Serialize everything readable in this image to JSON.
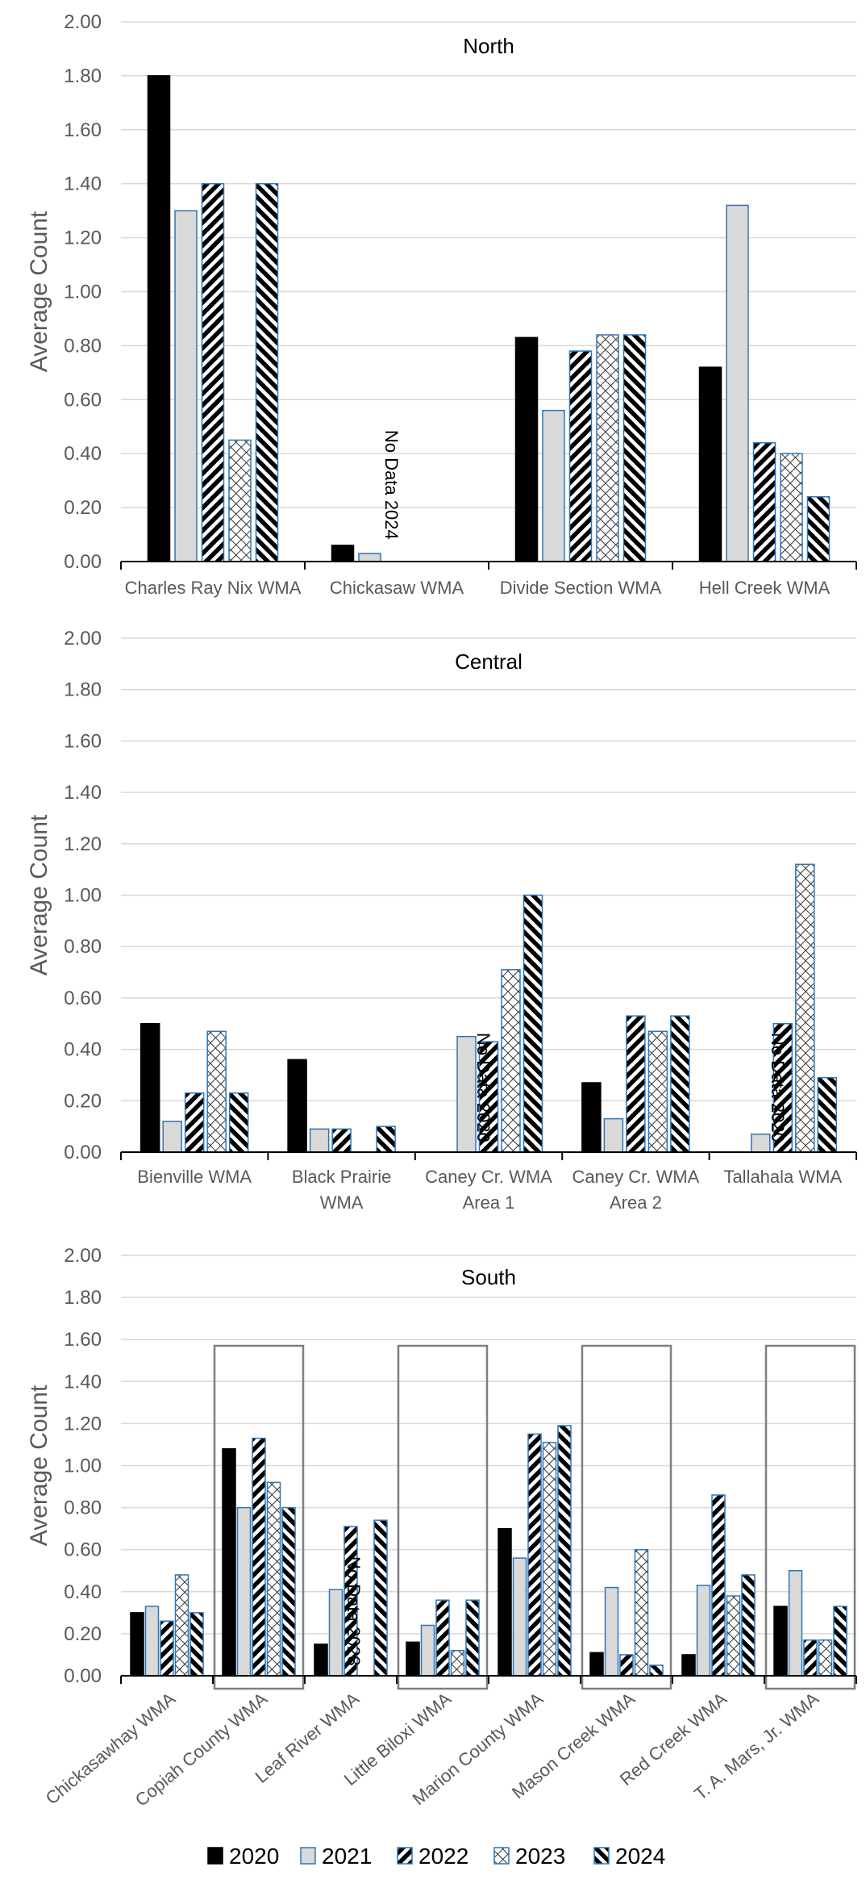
{
  "legend": {
    "years": [
      "2020",
      "2021",
      "2022",
      "2023",
      "2024"
    ]
  },
  "chart_data": [
    {
      "type": "bar",
      "title": "North",
      "ylabel": "Average Count",
      "ylim": [
        0,
        2.0
      ],
      "yticks": [
        "0.00",
        "0.20",
        "0.40",
        "0.60",
        "0.80",
        "1.00",
        "1.20",
        "1.40",
        "1.60",
        "1.80",
        "2.00"
      ],
      "categories": [
        "Charles Ray Nix WMA",
        "Chickasaw WMA",
        "Divide Section WMA",
        "Hell Creek WMA"
      ],
      "series": [
        {
          "name": "2020",
          "values": [
            1.8,
            0.06,
            0.83,
            0.72
          ]
        },
        {
          "name": "2021",
          "values": [
            1.3,
            0.03,
            0.56,
            1.32
          ]
        },
        {
          "name": "2022",
          "values": [
            1.4,
            null,
            0.78,
            0.44
          ]
        },
        {
          "name": "2023",
          "values": [
            0.45,
            null,
            0.84,
            0.4
          ]
        },
        {
          "name": "2024",
          "values": [
            1.4,
            null,
            0.84,
            0.24
          ]
        }
      ],
      "annotations": [
        {
          "category": "Chickasaw WMA",
          "text": "No Data 2024"
        }
      ],
      "grid": true
    },
    {
      "type": "bar",
      "title": "Central",
      "ylabel": "Average Count",
      "ylim": [
        0,
        2.0
      ],
      "yticks": [
        "0.00",
        "0.20",
        "0.40",
        "0.60",
        "0.80",
        "1.00",
        "1.20",
        "1.40",
        "1.60",
        "1.80",
        "2.00"
      ],
      "categories": [
        "Bienville WMA",
        "Black Prairie WMA",
        "Caney Cr. WMA Area 1",
        "Caney Cr. WMA Area 2",
        "Tallahala WMA"
      ],
      "category_lines": [
        [
          "Bienville WMA"
        ],
        [
          "Black Prairie",
          "WMA"
        ],
        [
          "Caney Cr. WMA",
          "Area 1"
        ],
        [
          "Caney Cr. WMA",
          "Area 2"
        ],
        [
          "Tallahala WMA"
        ]
      ],
      "series": [
        {
          "name": "2020",
          "values": [
            0.5,
            0.36,
            null,
            0.27,
            null
          ]
        },
        {
          "name": "2021",
          "values": [
            0.12,
            0.09,
            0.45,
            0.13,
            0.07
          ]
        },
        {
          "name": "2022",
          "values": [
            0.23,
            0.09,
            0.43,
            0.53,
            0.5
          ]
        },
        {
          "name": "2023",
          "values": [
            0.47,
            null,
            0.71,
            0.47,
            1.12
          ]
        },
        {
          "name": "2024",
          "values": [
            0.23,
            0.1,
            1.0,
            0.53,
            0.29
          ]
        }
      ],
      "annotations": [
        {
          "category": "Caney Cr. WMA Area 1",
          "text": "No Data 2020"
        },
        {
          "category": "Tallahala WMA",
          "text": "No Data 2020"
        }
      ],
      "grid": true
    },
    {
      "type": "bar",
      "title": "South",
      "ylabel": "Average Count",
      "ylim": [
        0,
        2.0
      ],
      "yticks": [
        "0.00",
        "0.20",
        "0.40",
        "0.60",
        "0.80",
        "1.00",
        "1.20",
        "1.40",
        "1.60",
        "1.80",
        "2.00"
      ],
      "categories": [
        "Chickasawhay WMA",
        "Copiah County WMA",
        "Leaf River WMA",
        "Little Biloxi WMA",
        "Marion County WMA",
        "Mason Creek WMA",
        "Red Creek WMA",
        "T. A. Mars, Jr. WMA"
      ],
      "series": [
        {
          "name": "2020",
          "values": [
            0.3,
            1.08,
            0.15,
            0.16,
            0.7,
            0.11,
            0.1,
            0.33
          ]
        },
        {
          "name": "2021",
          "values": [
            0.33,
            0.8,
            0.41,
            0.24,
            0.56,
            0.42,
            0.43,
            0.5
          ]
        },
        {
          "name": "2022",
          "values": [
            0.26,
            1.13,
            0.71,
            0.36,
            1.15,
            0.1,
            0.86,
            0.17
          ]
        },
        {
          "name": "2023",
          "values": [
            0.48,
            0.92,
            null,
            0.12,
            1.11,
            0.6,
            0.38,
            0.17
          ]
        },
        {
          "name": "2024",
          "values": [
            0.3,
            0.8,
            0.74,
            0.36,
            1.19,
            0.05,
            0.48,
            0.33
          ]
        }
      ],
      "annotations": [
        {
          "category": "Leaf River WMA",
          "text": "No Data 2023"
        }
      ],
      "boxed_categories": [
        "Copiah County WMA",
        "Little Biloxi WMA",
        "Mason Creek WMA",
        "T. A. Mars, Jr. WMA"
      ],
      "grid": true
    }
  ]
}
